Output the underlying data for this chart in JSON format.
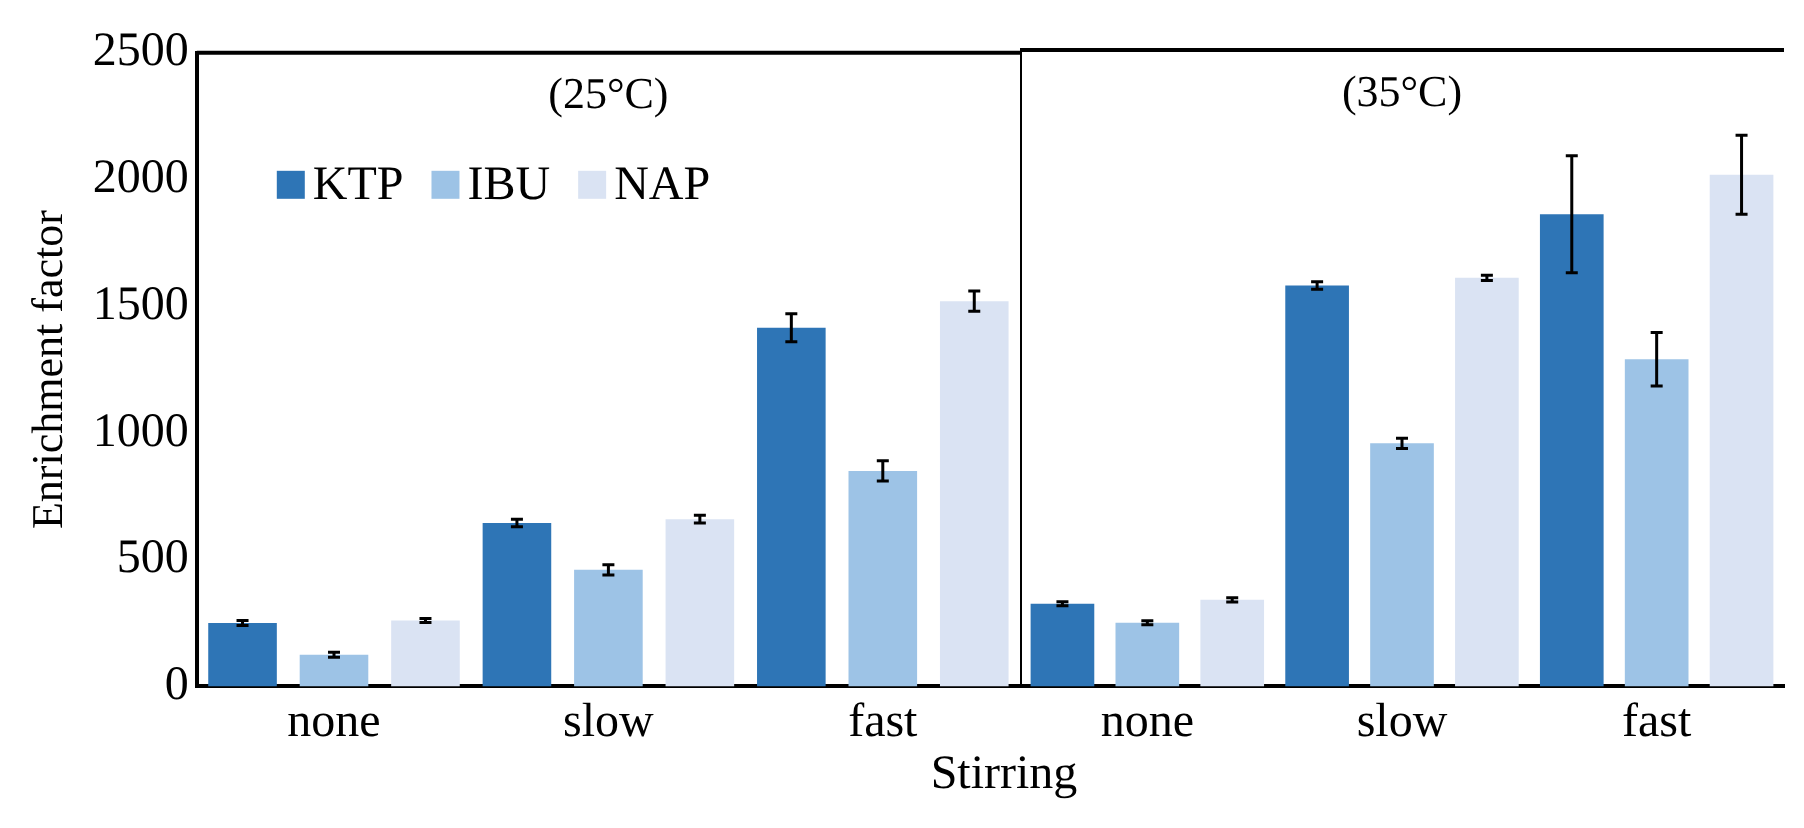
{
  "chart_data": [
    {
      "type": "bar",
      "xlabel": "Stirring",
      "ylabel": "Enrichment factor",
      "categories": [
        "none",
        "slow",
        "fast"
      ],
      "series": [
        {
          "name": "KTP",
          "color": "#2e75b6",
          "values": [
            250,
            645,
            1415
          ],
          "errors": [
            10,
            15,
            55
          ]
        },
        {
          "name": "IBU",
          "color": "#9dc3e6",
          "values": [
            125,
            460,
            850
          ],
          "errors": [
            10,
            20,
            40
          ]
        },
        {
          "name": "NAP",
          "color": "#dae3f3",
          "values": [
            260,
            660,
            1520
          ],
          "errors": [
            8,
            15,
            40
          ]
        }
      ],
      "ylim": [
        0,
        2500
      ],
      "yticks": [
        0,
        500,
        1000,
        1500,
        2000,
        2500
      ],
      "grid": false,
      "legend": "top left",
      "annotations": [
        "(25°C)"
      ]
    },
    {
      "type": "bar",
      "categories": [
        "none",
        "slow",
        "fast"
      ],
      "series": [
        {
          "color": "#2e75b6",
          "values": [
            325,
            1575,
            1855
          ],
          "errors": [
            8,
            15,
            230
          ]
        },
        {
          "color": "#9dc3e6",
          "values": [
            250,
            955,
            1285
          ],
          "errors": [
            8,
            20,
            105
          ]
        },
        {
          "color": "#dae3f3",
          "values": [
            340,
            1605,
            2010
          ],
          "errors": [
            8,
            10,
            155
          ]
        }
      ],
      "ylim": [
        0,
        2500
      ],
      "yticks": [
        0,
        500,
        1000,
        1500,
        2000,
        2500
      ],
      "grid": false,
      "tick_labels": "x",
      "annotations": [
        "(35°C)"
      ]
    }
  ]
}
